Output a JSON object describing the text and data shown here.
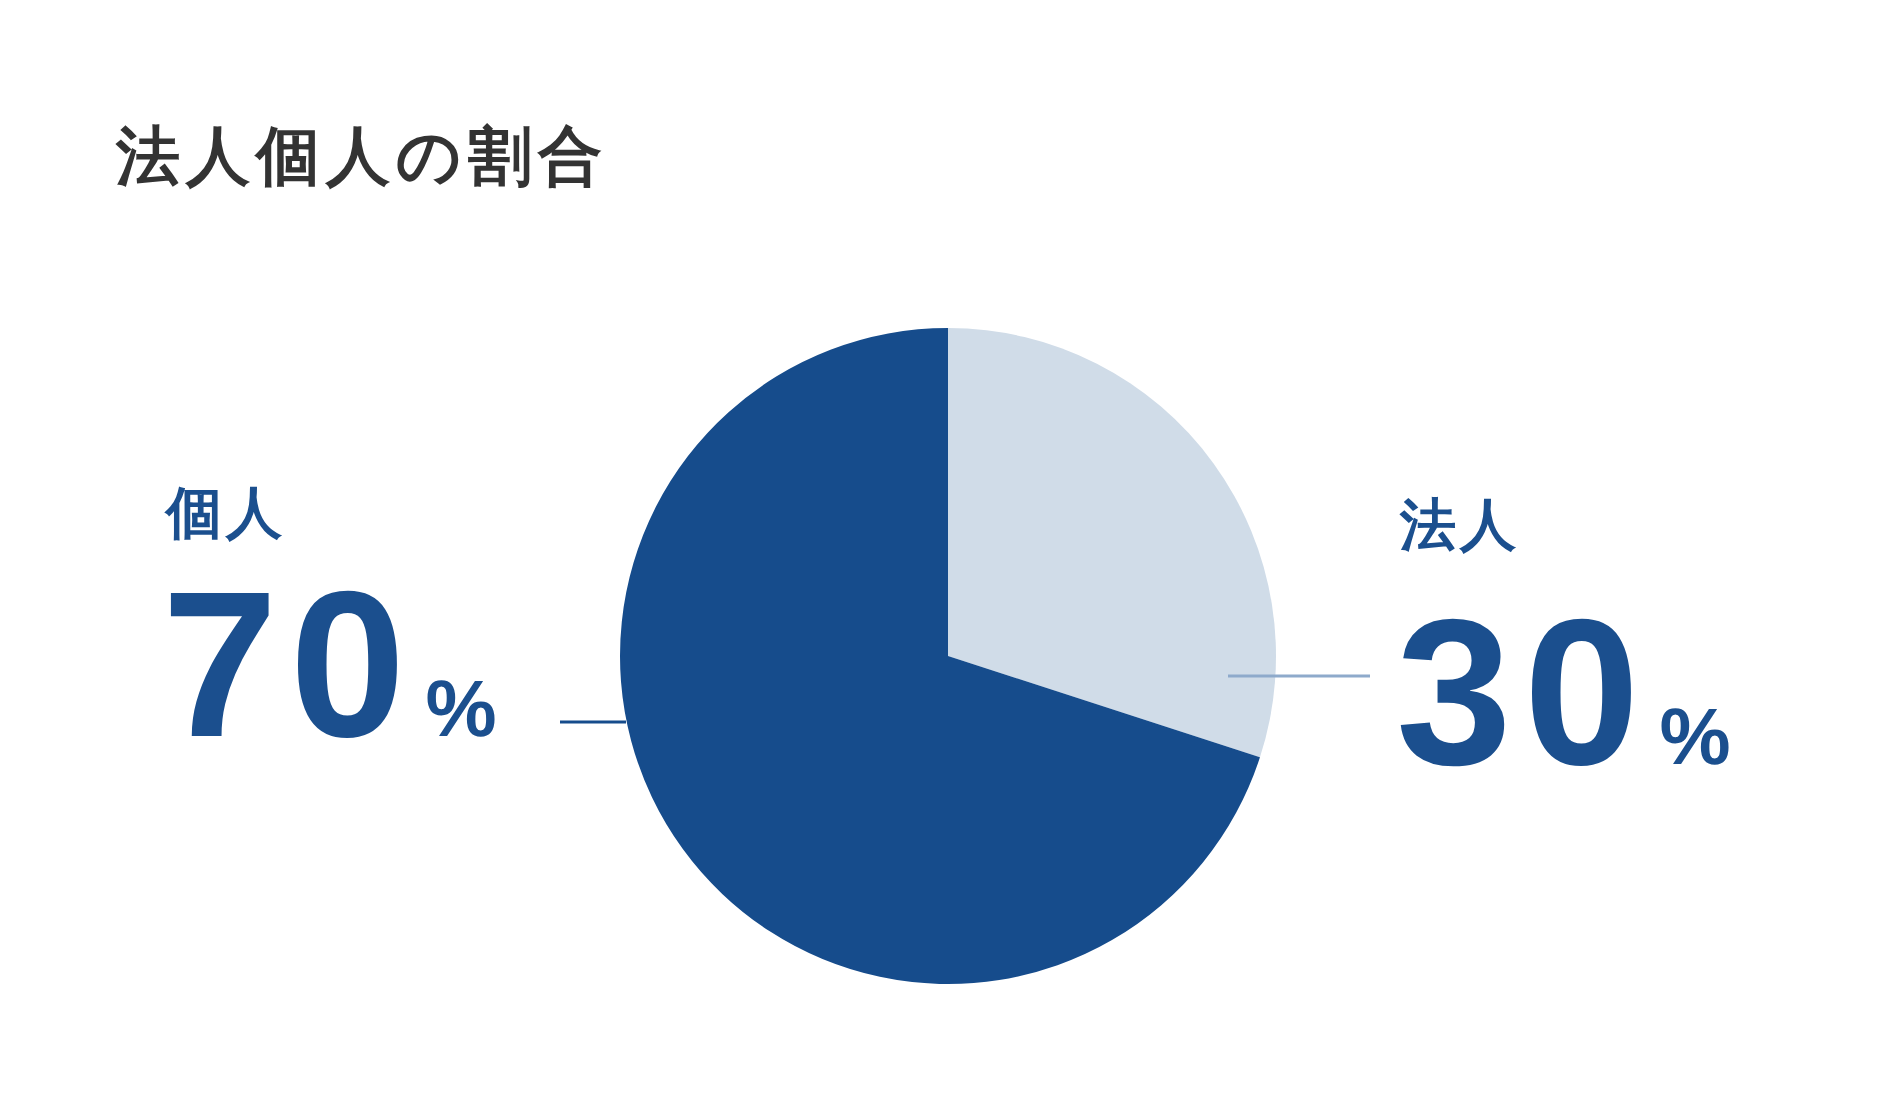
{
  "chart_data": {
    "type": "pie",
    "title": "法人個人の割合",
    "categories": [
      "法人",
      "個人"
    ],
    "values": [
      30,
      70
    ],
    "colors": [
      "#d0dce8",
      "#164c8c"
    ],
    "value_labels": [
      "30%",
      "70%"
    ]
  }
}
